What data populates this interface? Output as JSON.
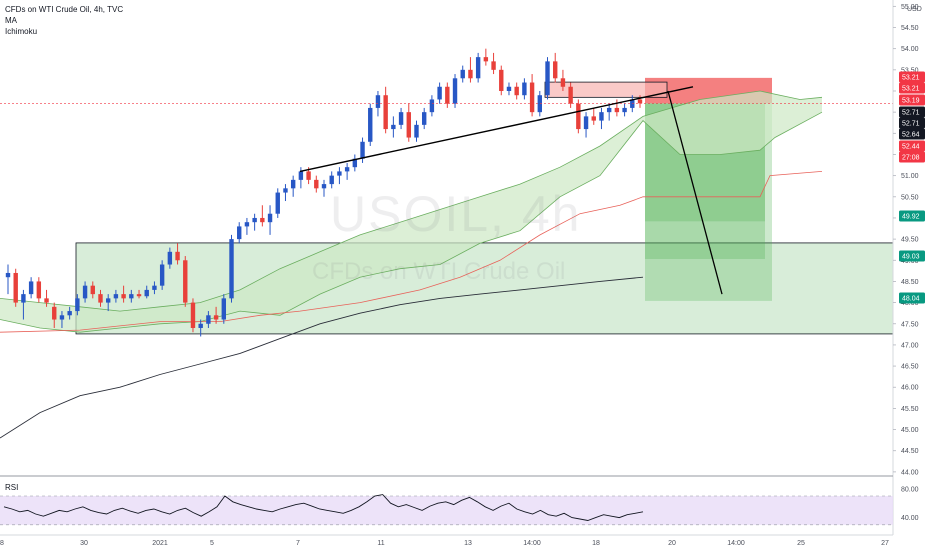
{
  "legend": {
    "title": "CFDs on WTI Crude Oil, 4h, TVC",
    "ma": "MA",
    "ichimoku": "Ichimoku"
  },
  "watermark": {
    "symbol": "USOIL, 4h",
    "description": "CFDs on WTI Crude Oil"
  },
  "rsi": {
    "label": "RSI",
    "axis_ticks": [
      "80.00",
      "40.00"
    ]
  },
  "colors": {
    "up": "#2857c5",
    "down": "#e8403a",
    "ma": "#2a2e39",
    "cloud_fill": "#cde8c5",
    "cloud_line": "#6aae5f",
    "base_line": "#e8625a",
    "stop_zone": "#f26a6a",
    "target_zone": "#4caf50",
    "rsi_band": "#e8dcf7"
  },
  "chart_data": {
    "type": "candlestick",
    "title": "CFDs on WTI Crude Oil, 4h, TVC",
    "currency": "USD",
    "ylim": [
      43.95,
      55.15
    ],
    "y_ticks": [
      "55.00",
      "54.50",
      "54.00",
      "53.50",
      "53.00",
      "52.50",
      "52.00",
      "51.50",
      "51.00",
      "50.50",
      "50.00",
      "49.50",
      "49.00",
      "48.50",
      "48.00",
      "47.50",
      "47.00",
      "46.50",
      "46.00",
      "45.50",
      "45.00",
      "44.50",
      "44.00"
    ],
    "x_ticks": [
      "28",
      "30",
      "2021",
      "5",
      "7",
      "11",
      "13",
      "14:00",
      "18",
      "20",
      "14:00",
      "25",
      "27"
    ],
    "price_tags": [
      {
        "value": "53.21",
        "bg": "#f23645"
      },
      {
        "value": "53.21",
        "bg": "#f23645"
      },
      {
        "value": "53.19",
        "bg": "#f23645"
      },
      {
        "value": "52.71",
        "bg": "#131722"
      },
      {
        "value": "52.71",
        "bg": "#131722"
      },
      {
        "value": "52.64",
        "bg": "#131722"
      },
      {
        "value": "52.44",
        "bg": "#f23645"
      },
      {
        "value": "27:08",
        "bg": "#f23645"
      },
      {
        "value": "49.92",
        "bg": "#089981"
      },
      {
        "value": "49.03",
        "bg": "#089981"
      },
      {
        "value": "48.04",
        "bg": "#089981"
      }
    ],
    "candles": [
      [
        48.6,
        48.9,
        48.2,
        48.7
      ],
      [
        48.7,
        48.8,
        47.9,
        48.0
      ],
      [
        48.0,
        48.3,
        47.6,
        48.2
      ],
      [
        48.2,
        48.6,
        48.1,
        48.5
      ],
      [
        48.5,
        48.6,
        48.0,
        48.1
      ],
      [
        48.1,
        48.3,
        47.9,
        48.0
      ],
      [
        47.9,
        48.0,
        47.4,
        47.6
      ],
      [
        47.6,
        47.8,
        47.4,
        47.7
      ],
      [
        47.7,
        47.9,
        47.6,
        47.8
      ],
      [
        47.8,
        48.2,
        47.7,
        48.1
      ],
      [
        48.1,
        48.5,
        48.0,
        48.4
      ],
      [
        48.4,
        48.5,
        48.1,
        48.2
      ],
      [
        48.2,
        48.3,
        47.9,
        48.0
      ],
      [
        48.0,
        48.2,
        47.8,
        48.1
      ],
      [
        48.1,
        48.3,
        48.0,
        48.2
      ],
      [
        48.2,
        48.4,
        48.0,
        48.1
      ],
      [
        48.1,
        48.3,
        48.0,
        48.2
      ],
      [
        48.2,
        48.3,
        48.1,
        48.15
      ],
      [
        48.15,
        48.4,
        48.1,
        48.3
      ],
      [
        48.3,
        48.5,
        48.2,
        48.4
      ],
      [
        48.4,
        49.0,
        48.3,
        48.9
      ],
      [
        48.9,
        49.3,
        48.8,
        49.2
      ],
      [
        49.2,
        49.4,
        48.9,
        49.0
      ],
      [
        49.0,
        49.1,
        47.9,
        48.0
      ],
      [
        48.0,
        48.1,
        47.3,
        47.4
      ],
      [
        47.4,
        47.6,
        47.2,
        47.5
      ],
      [
        47.5,
        47.8,
        47.4,
        47.7
      ],
      [
        47.7,
        47.9,
        47.5,
        47.6
      ],
      [
        47.6,
        48.2,
        47.5,
        48.1
      ],
      [
        48.1,
        49.6,
        48.0,
        49.5
      ],
      [
        49.5,
        49.9,
        49.4,
        49.8
      ],
      [
        49.8,
        50.0,
        49.6,
        49.9
      ],
      [
        49.9,
        50.1,
        49.7,
        50.0
      ],
      [
        50.0,
        50.3,
        49.8,
        49.9
      ],
      [
        49.9,
        50.3,
        49.6,
        50.1
      ],
      [
        50.1,
        50.7,
        50.0,
        50.6
      ],
      [
        50.6,
        50.8,
        50.4,
        50.7
      ],
      [
        50.7,
        51.0,
        50.5,
        50.9
      ],
      [
        50.9,
        51.2,
        50.7,
        51.1
      ],
      [
        51.1,
        51.2,
        50.8,
        50.9
      ],
      [
        50.9,
        51.0,
        50.6,
        50.7
      ],
      [
        50.7,
        50.9,
        50.5,
        50.8
      ],
      [
        50.8,
        51.1,
        50.7,
        51.0
      ],
      [
        51.0,
        51.2,
        50.8,
        51.1
      ],
      [
        51.1,
        51.3,
        50.9,
        51.2
      ],
      [
        51.2,
        51.5,
        51.1,
        51.4
      ],
      [
        51.4,
        51.9,
        51.3,
        51.8
      ],
      [
        51.8,
        52.7,
        51.7,
        52.6
      ],
      [
        52.6,
        53.0,
        52.4,
        52.9
      ],
      [
        52.9,
        53.1,
        52.0,
        52.1
      ],
      [
        52.1,
        52.4,
        51.9,
        52.2
      ],
      [
        52.2,
        52.6,
        52.1,
        52.5
      ],
      [
        52.5,
        52.7,
        51.8,
        51.9
      ],
      [
        51.9,
        52.3,
        51.8,
        52.2
      ],
      [
        52.2,
        52.6,
        52.1,
        52.5
      ],
      [
        52.5,
        52.9,
        52.4,
        52.8
      ],
      [
        52.8,
        53.2,
        52.7,
        53.1
      ],
      [
        53.1,
        53.2,
        52.6,
        52.7
      ],
      [
        52.7,
        53.4,
        52.6,
        53.3
      ],
      [
        53.3,
        53.6,
        53.2,
        53.5
      ],
      [
        53.5,
        53.8,
        53.2,
        53.3
      ],
      [
        53.3,
        53.9,
        53.2,
        53.8
      ],
      [
        53.8,
        54.0,
        53.6,
        53.7
      ],
      [
        53.7,
        53.9,
        53.4,
        53.5
      ],
      [
        53.5,
        53.6,
        52.9,
        53.0
      ],
      [
        53.0,
        53.2,
        52.9,
        53.1
      ],
      [
        53.1,
        53.2,
        52.8,
        52.9
      ],
      [
        52.9,
        53.3,
        52.8,
        53.2
      ],
      [
        53.2,
        53.4,
        52.4,
        52.5
      ],
      [
        52.5,
        53.0,
        52.4,
        52.9
      ],
      [
        52.9,
        53.8,
        52.8,
        53.7
      ],
      [
        53.7,
        53.9,
        53.2,
        53.3
      ],
      [
        53.3,
        53.5,
        53.0,
        53.1
      ],
      [
        53.1,
        53.2,
        52.6,
        52.7
      ],
      [
        52.7,
        52.8,
        52.0,
        52.1
      ],
      [
        52.1,
        52.5,
        51.9,
        52.4
      ],
      [
        52.4,
        52.6,
        52.2,
        52.3
      ],
      [
        52.3,
        52.6,
        52.1,
        52.5
      ],
      [
        52.5,
        52.7,
        52.3,
        52.6
      ],
      [
        52.6,
        52.8,
        52.4,
        52.5
      ],
      [
        52.5,
        52.7,
        52.4,
        52.6
      ],
      [
        52.6,
        52.9,
        52.5,
        52.8
      ],
      [
        52.8,
        52.9,
        52.6,
        52.71
      ]
    ],
    "ma_line": [
      [
        0,
        44.8
      ],
      [
        40,
        45.4
      ],
      [
        80,
        45.8
      ],
      [
        120,
        46.0
      ],
      [
        160,
        46.3
      ],
      [
        200,
        46.55
      ],
      [
        240,
        46.8
      ],
      [
        280,
        47.15
      ],
      [
        320,
        47.5
      ],
      [
        360,
        47.75
      ],
      [
        400,
        47.95
      ],
      [
        440,
        48.1
      ],
      [
        480,
        48.2
      ],
      [
        520,
        48.3
      ],
      [
        560,
        48.4
      ],
      [
        600,
        48.5
      ],
      [
        643,
        48.6
      ]
    ],
    "cloud_upper": [
      [
        0,
        48.1
      ],
      [
        40,
        48.0
      ],
      [
        80,
        47.9
      ],
      [
        120,
        47.8
      ],
      [
        160,
        47.9
      ],
      [
        200,
        48.0
      ],
      [
        240,
        48.3
      ],
      [
        280,
        48.8
      ],
      [
        320,
        49.2
      ],
      [
        360,
        49.6
      ],
      [
        400,
        49.9
      ],
      [
        440,
        50.2
      ],
      [
        480,
        50.5
      ],
      [
        520,
        50.8
      ],
      [
        560,
        51.2
      ],
      [
        600,
        51.7
      ],
      [
        643,
        52.4
      ],
      [
        700,
        52.8
      ],
      [
        760,
        53.0
      ],
      [
        800,
        52.8
      ],
      [
        822,
        52.85
      ]
    ],
    "cloud_lower": [
      [
        0,
        47.6
      ],
      [
        40,
        47.4
      ],
      [
        80,
        47.3
      ],
      [
        120,
        47.4
      ],
      [
        160,
        47.5
      ],
      [
        200,
        47.55
      ],
      [
        240,
        47.8
      ],
      [
        280,
        47.7
      ],
      [
        320,
        48.2
      ],
      [
        360,
        48.6
      ],
      [
        400,
        48.8
      ],
      [
        440,
        48.9
      ],
      [
        480,
        49.4
      ],
      [
        520,
        49.7
      ],
      [
        560,
        50.5
      ],
      [
        600,
        51.0
      ],
      [
        643,
        52.3
      ],
      [
        680,
        51.5
      ],
      [
        720,
        51.5
      ],
      [
        760,
        51.6
      ],
      [
        775,
        51.9
      ],
      [
        822,
        52.5
      ]
    ],
    "base_line": [
      [
        0,
        47.3
      ],
      [
        80,
        47.35
      ],
      [
        160,
        47.55
      ],
      [
        220,
        47.55
      ],
      [
        260,
        47.7
      ],
      [
        300,
        47.8
      ],
      [
        360,
        48.0
      ],
      [
        420,
        48.3
      ],
      [
        460,
        48.6
      ],
      [
        500,
        49.0
      ],
      [
        540,
        49.6
      ],
      [
        580,
        50.1
      ],
      [
        620,
        50.3
      ],
      [
        643,
        50.5
      ],
      [
        700,
        50.5
      ],
      [
        760,
        50.5
      ],
      [
        770,
        51.0
      ],
      [
        822,
        51.1
      ]
    ],
    "trendline": {
      "from": [
        300,
        51.1
      ],
      "to": [
        693,
        53.1
      ]
    },
    "arrow_line": {
      "from": [
        668,
        53.0
      ],
      "to": [
        722,
        48.2
      ]
    },
    "support_zone": {
      "x0": 76,
      "x1": 893,
      "top": 49.41,
      "bottom": 47.26
    },
    "resistance_box": {
      "x0": 545,
      "x1": 667,
      "top": 53.21,
      "bottom": 52.85
    },
    "stop_zone": {
      "x0": 645,
      "x1": 772,
      "top": 53.31,
      "bottom": 52.71
    },
    "target_zones": [
      {
        "x0": 645,
        "x1": 765,
        "top": 52.71,
        "bottom": 49.92
      },
      {
        "x0": 645,
        "x1": 765,
        "top": 52.71,
        "bottom": 49.03
      },
      {
        "x0": 645,
        "x1": 772,
        "top": 52.71,
        "bottom": 48.04
      }
    ],
    "last_price": 52.71,
    "rsi_series": [
      55,
      52,
      48,
      50,
      45,
      42,
      46,
      50,
      48,
      52,
      55,
      50,
      47,
      45,
      50,
      53,
      49,
      46,
      50,
      52,
      48,
      45,
      50,
      53,
      47,
      42,
      48,
      55,
      70,
      62,
      58,
      55,
      52,
      50,
      48,
      52,
      55,
      58,
      60,
      56,
      52,
      50,
      48,
      46,
      50,
      55,
      62,
      70,
      72,
      60,
      55,
      58,
      54,
      50,
      56,
      60,
      62,
      58,
      64,
      68,
      62,
      55,
      50,
      56,
      60,
      52,
      48,
      45,
      50,
      44,
      42,
      46,
      40,
      38,
      36,
      40,
      44,
      42,
      40,
      44,
      46,
      48
    ],
    "rsi_ylim": [
      20,
      95
    ]
  }
}
